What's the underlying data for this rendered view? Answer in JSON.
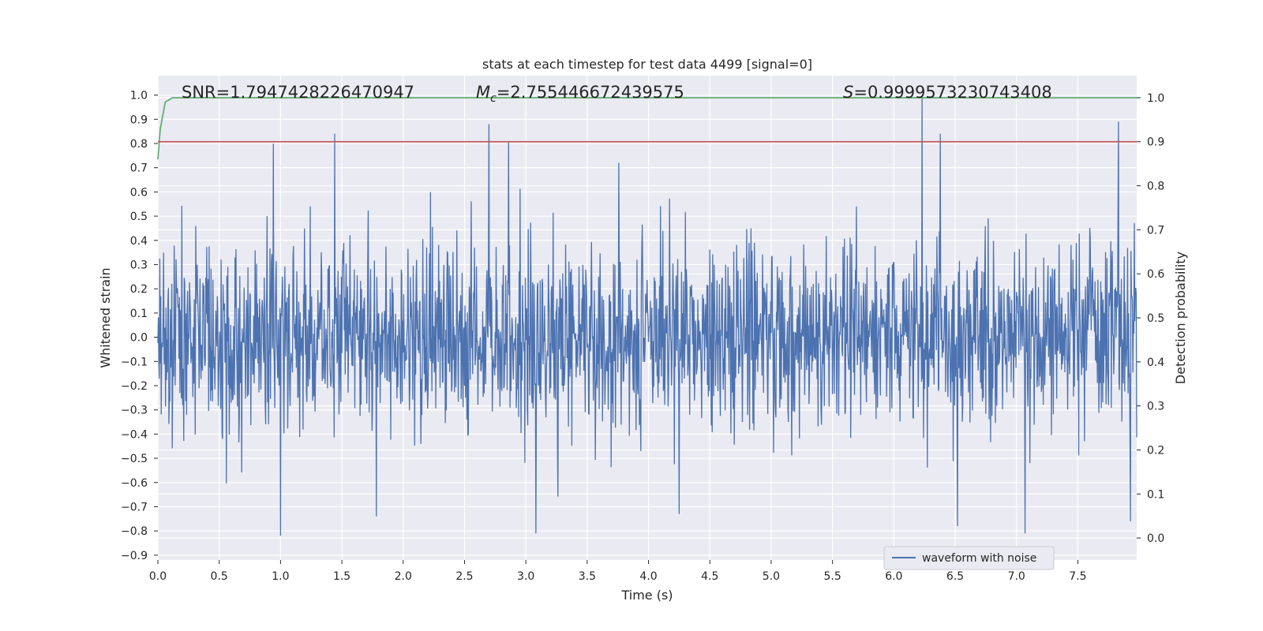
{
  "chart_data": {
    "type": "line",
    "title": "stats at each timestep for test data 4499 [signal=0]",
    "xlabel": "Time (s)",
    "ylabel": "Whitened strain",
    "y2label": "Detection probability",
    "xlim": [
      0.0,
      7.98
    ],
    "ylim": [
      -0.92,
      1.08
    ],
    "y2lim": [
      -0.05,
      1.05
    ],
    "xticks": [
      0.0,
      0.5,
      1.0,
      1.5,
      2.0,
      2.5,
      3.0,
      3.5,
      4.0,
      4.5,
      5.0,
      5.5,
      6.0,
      6.5,
      7.0,
      7.5
    ],
    "xtick_labels": [
      "0.0",
      "0.5",
      "1.0",
      "1.5",
      "2.0",
      "2.5",
      "3.0",
      "3.5",
      "4.0",
      "4.5",
      "5.0",
      "5.5",
      "6.0",
      "6.5",
      "7.0",
      "7.5"
    ],
    "yticks": [
      1.0,
      0.9,
      0.8,
      0.7,
      0.6,
      0.5,
      0.4,
      0.3,
      0.2,
      0.1,
      0.0,
      -0.1,
      -0.2,
      -0.3,
      -0.4,
      -0.5,
      -0.6,
      -0.7,
      -0.8,
      -0.9
    ],
    "ytick_labels": [
      "1.0",
      "0.9",
      "0.8",
      "0.7",
      "0.6",
      "0.5",
      "0.4",
      "0.3",
      "0.2",
      "0.1",
      "0.0",
      "−0.1",
      "−0.2",
      "−0.3",
      "−0.4",
      "−0.5",
      "−0.6",
      "−0.7",
      "−0.8",
      "−0.9"
    ],
    "y2ticks": [
      1.0,
      0.9,
      0.8,
      0.7,
      0.6,
      0.5,
      0.4,
      0.3,
      0.2,
      0.1,
      0.0
    ],
    "y2tick_labels": [
      "1.0",
      "0.9",
      "0.8",
      "0.7",
      "0.6",
      "0.5",
      "0.4",
      "0.3",
      "0.2",
      "0.1",
      "0.0"
    ],
    "grid": true,
    "background": "#eaeaf2",
    "annotations": {
      "snr": "SNR=1.7947428226470947",
      "mc_symbol": "M",
      "mc_sub": "c",
      "mc_value": "=2.755446672439575",
      "s_symbol": "S",
      "s_value": "=0.9999573230743408"
    },
    "series": [
      {
        "name": "waveform with noise",
        "axis": "left",
        "color": "#4c72b0",
        "kind": "noise",
        "sample_rate": 256,
        "duration": 7.98,
        "band": [
          -0.27,
          0.27
        ],
        "peaks": [
          {
            "x": 0.94,
            "y": 0.8
          },
          {
            "x": 1.0,
            "y": -0.82
          },
          {
            "x": 1.44,
            "y": 0.84
          },
          {
            "x": 2.7,
            "y": 0.88
          },
          {
            "x": 2.86,
            "y": 0.81
          },
          {
            "x": 3.08,
            "y": -0.81
          },
          {
            "x": 1.78,
            "y": -0.74
          },
          {
            "x": 4.25,
            "y": -0.73
          },
          {
            "x": 6.23,
            "y": 1.0
          },
          {
            "x": 6.38,
            "y": 0.84
          },
          {
            "x": 6.52,
            "y": -0.78
          },
          {
            "x": 7.07,
            "y": -0.81
          },
          {
            "x": 7.83,
            "y": 0.89
          },
          {
            "x": 7.93,
            "y": -0.76
          }
        ]
      },
      {
        "name": "",
        "axis": "right",
        "color": "#55a868",
        "x": [
          0.0,
          0.02,
          0.06,
          0.12,
          0.2,
          7.98
        ],
        "y": [
          0.86,
          0.93,
          0.99,
          1.0,
          1.0,
          1.0
        ]
      },
      {
        "name": "",
        "axis": "right",
        "color": "#c44e52",
        "x": [
          0.0,
          7.98
        ],
        "y": [
          0.9,
          0.9
        ]
      }
    ],
    "legend": {
      "placement": "lower-right",
      "entries": [
        "waveform with noise"
      ]
    }
  }
}
